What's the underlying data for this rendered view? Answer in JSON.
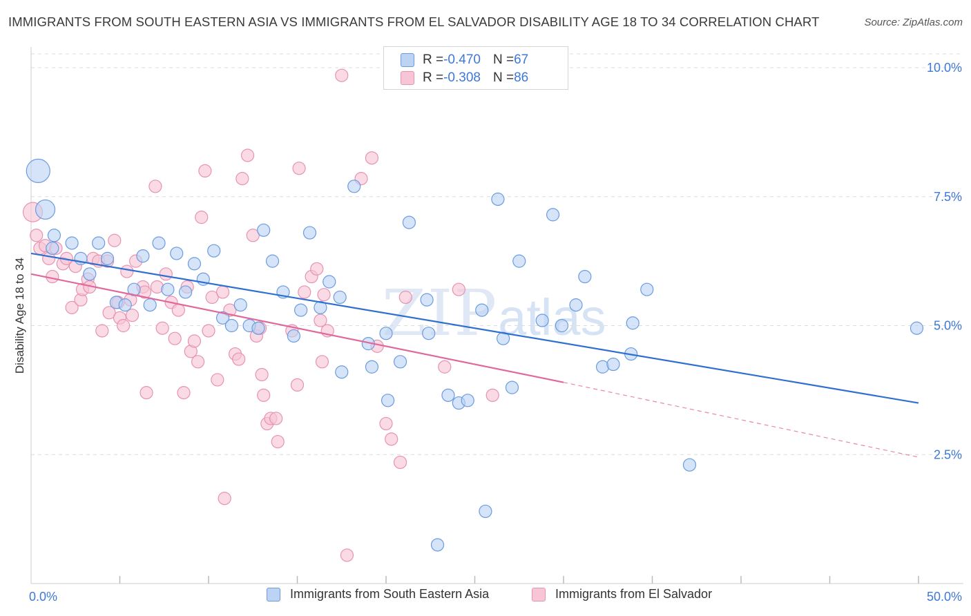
{
  "header": {
    "title": "IMMIGRANTS FROM SOUTH EASTERN ASIA VS IMMIGRANTS FROM EL SALVADOR DISABILITY AGE 18 TO 34 CORRELATION CHART",
    "source": "Source: ZipAtlas.com"
  },
  "watermark": {
    "main": "ZIP",
    "sub": "atlas"
  },
  "legend": {
    "series1": {
      "r_label": "R = ",
      "r_value": "-0.470",
      "n_label": "N = ",
      "n_value": "67"
    },
    "series2": {
      "r_label": "R = ",
      "r_value": "-0.308",
      "n_label": "N = ",
      "n_value": "86"
    }
  },
  "colors": {
    "blue_fill": "#bcd3f3",
    "blue_stroke": "#6a9be0",
    "blue_line": "#2e6fd0",
    "pink_fill": "#f7c5d5",
    "pink_stroke": "#e892b0",
    "pink_line": "#e0689a",
    "tick_label": "#3d78d8",
    "grid": "#dcdcdc"
  },
  "chart_data": {
    "type": "scatter",
    "title": "IMMIGRANTS FROM SOUTH EASTERN ASIA VS IMMIGRANTS FROM EL SALVADOR DISABILITY AGE 18 TO 34 CORRELATION CHART",
    "xlabel": "",
    "ylabel": "Disability Age 18 to 34",
    "xlim": [
      0,
      50
    ],
    "ylim": [
      0,
      10.25
    ],
    "x_tick_labels": [
      "0.0%",
      "50.0%"
    ],
    "y_ticks": [
      2.5,
      5.0,
      7.5,
      10.0
    ],
    "y_tick_labels": [
      "2.5%",
      "5.0%",
      "7.5%",
      "10.0%"
    ],
    "grid": true,
    "legend_position": "bottom",
    "series": [
      {
        "name": "Immigrants from South Eastern Asia",
        "color": "blue",
        "r": -0.47,
        "n": 67,
        "trend": {
          "x_start": 0,
          "y_start": 6.4,
          "x_end": 50,
          "y_end": 3.5
        },
        "points": [
          {
            "x": 0.4,
            "y": 8.0,
            "s": 3
          },
          {
            "x": 0.8,
            "y": 7.25,
            "s": 2
          },
          {
            "x": 1.3,
            "y": 6.75,
            "s": 1
          },
          {
            "x": 1.2,
            "y": 6.5,
            "s": 1
          },
          {
            "x": 2.3,
            "y": 6.6,
            "s": 1
          },
          {
            "x": 2.8,
            "y": 6.3,
            "s": 1
          },
          {
            "x": 3.3,
            "y": 6.0,
            "s": 1
          },
          {
            "x": 3.8,
            "y": 6.6,
            "s": 1
          },
          {
            "x": 4.3,
            "y": 6.3,
            "s": 1
          },
          {
            "x": 4.8,
            "y": 5.45,
            "s": 1
          },
          {
            "x": 5.3,
            "y": 5.4,
            "s": 1
          },
          {
            "x": 5.8,
            "y": 5.7,
            "s": 1
          },
          {
            "x": 6.3,
            "y": 6.35,
            "s": 1
          },
          {
            "x": 6.7,
            "y": 5.4,
            "s": 1
          },
          {
            "x": 7.2,
            "y": 6.6,
            "s": 1
          },
          {
            "x": 7.7,
            "y": 5.7,
            "s": 1
          },
          {
            "x": 8.2,
            "y": 6.4,
            "s": 1
          },
          {
            "x": 8.7,
            "y": 5.65,
            "s": 1
          },
          {
            "x": 9.2,
            "y": 6.2,
            "s": 1
          },
          {
            "x": 9.7,
            "y": 5.9,
            "s": 1
          },
          {
            "x": 10.3,
            "y": 6.45,
            "s": 1
          },
          {
            "x": 10.8,
            "y": 5.15,
            "s": 1
          },
          {
            "x": 11.3,
            "y": 5.0,
            "s": 1
          },
          {
            "x": 11.8,
            "y": 5.4,
            "s": 1
          },
          {
            "x": 12.3,
            "y": 5.0,
            "s": 1
          },
          {
            "x": 12.8,
            "y": 4.95,
            "s": 1
          },
          {
            "x": 13.1,
            "y": 6.85,
            "s": 1
          },
          {
            "x": 13.6,
            "y": 6.25,
            "s": 1
          },
          {
            "x": 14.2,
            "y": 5.65,
            "s": 1
          },
          {
            "x": 14.8,
            "y": 4.8,
            "s": 1
          },
          {
            "x": 15.2,
            "y": 5.3,
            "s": 1
          },
          {
            "x": 15.7,
            "y": 6.8,
            "s": 1
          },
          {
            "x": 16.3,
            "y": 5.35,
            "s": 1
          },
          {
            "x": 16.8,
            "y": 5.85,
            "s": 1
          },
          {
            "x": 17.4,
            "y": 5.55,
            "s": 1
          },
          {
            "x": 17.5,
            "y": 4.1,
            "s": 1
          },
          {
            "x": 18.2,
            "y": 7.7,
            "s": 1
          },
          {
            "x": 19.0,
            "y": 4.65,
            "s": 1
          },
          {
            "x": 19.2,
            "y": 4.2,
            "s": 1
          },
          {
            "x": 20.0,
            "y": 4.85,
            "s": 1
          },
          {
            "x": 20.1,
            "y": 3.55,
            "s": 1
          },
          {
            "x": 20.8,
            "y": 4.3,
            "s": 1
          },
          {
            "x": 21.3,
            "y": 7.0,
            "s": 1
          },
          {
            "x": 22.3,
            "y": 5.5,
            "s": 1
          },
          {
            "x": 22.4,
            "y": 4.85,
            "s": 1
          },
          {
            "x": 22.9,
            "y": 0.75,
            "s": 1
          },
          {
            "x": 23.5,
            "y": 3.65,
            "s": 1
          },
          {
            "x": 24.1,
            "y": 3.5,
            "s": 1
          },
          {
            "x": 24.6,
            "y": 3.55,
            "s": 1
          },
          {
            "x": 25.4,
            "y": 5.3,
            "s": 1
          },
          {
            "x": 25.6,
            "y": 1.4,
            "s": 1
          },
          {
            "x": 26.3,
            "y": 7.45,
            "s": 1
          },
          {
            "x": 26.6,
            "y": 4.75,
            "s": 1
          },
          {
            "x": 27.1,
            "y": 3.8,
            "s": 1
          },
          {
            "x": 27.5,
            "y": 6.25,
            "s": 1
          },
          {
            "x": 28.8,
            "y": 5.1,
            "s": 1
          },
          {
            "x": 29.4,
            "y": 7.15,
            "s": 1
          },
          {
            "x": 29.9,
            "y": 5.0,
            "s": 1
          },
          {
            "x": 30.7,
            "y": 5.4,
            "s": 1
          },
          {
            "x": 31.2,
            "y": 5.95,
            "s": 1
          },
          {
            "x": 32.2,
            "y": 4.2,
            "s": 1
          },
          {
            "x": 32.8,
            "y": 4.25,
            "s": 1
          },
          {
            "x": 33.8,
            "y": 4.45,
            "s": 1
          },
          {
            "x": 33.9,
            "y": 5.05,
            "s": 1
          },
          {
            "x": 34.7,
            "y": 5.7,
            "s": 1
          },
          {
            "x": 37.1,
            "y": 2.3,
            "s": 1
          },
          {
            "x": 49.9,
            "y": 4.95,
            "s": 1
          }
        ]
      },
      {
        "name": "Immigrants from El Salvador",
        "color": "pink",
        "r": -0.308,
        "n": 86,
        "trend": {
          "x_start": 0,
          "y_start": 6.0,
          "x_end": 30.0,
          "y_end": 3.9
        },
        "trend_dashed_to": {
          "x": 50,
          "y": 2.45
        },
        "points": [
          {
            "x": 0.1,
            "y": 7.2,
            "s": 2
          },
          {
            "x": 0.3,
            "y": 6.75,
            "s": 1
          },
          {
            "x": 0.5,
            "y": 6.5,
            "s": 1
          },
          {
            "x": 0.8,
            "y": 6.55,
            "s": 1
          },
          {
            "x": 1.0,
            "y": 6.3,
            "s": 1
          },
          {
            "x": 1.2,
            "y": 5.95,
            "s": 1
          },
          {
            "x": 1.4,
            "y": 6.5,
            "s": 1
          },
          {
            "x": 1.8,
            "y": 6.2,
            "s": 1
          },
          {
            "x": 2.0,
            "y": 6.3,
            "s": 1
          },
          {
            "x": 2.3,
            "y": 5.35,
            "s": 1
          },
          {
            "x": 2.5,
            "y": 6.15,
            "s": 1
          },
          {
            "x": 2.8,
            "y": 5.5,
            "s": 1
          },
          {
            "x": 2.9,
            "y": 5.7,
            "s": 1
          },
          {
            "x": 3.2,
            "y": 5.9,
            "s": 1
          },
          {
            "x": 3.3,
            "y": 5.75,
            "s": 1
          },
          {
            "x": 3.5,
            "y": 6.3,
            "s": 1
          },
          {
            "x": 3.8,
            "y": 6.25,
            "s": 1
          },
          {
            "x": 4.0,
            "y": 4.9,
            "s": 1
          },
          {
            "x": 4.3,
            "y": 6.25,
            "s": 1
          },
          {
            "x": 4.4,
            "y": 5.25,
            "s": 1
          },
          {
            "x": 4.7,
            "y": 6.65,
            "s": 1
          },
          {
            "x": 4.9,
            "y": 5.45,
            "s": 1
          },
          {
            "x": 5.0,
            "y": 5.15,
            "s": 1
          },
          {
            "x": 5.2,
            "y": 5.0,
            "s": 1
          },
          {
            "x": 5.4,
            "y": 6.05,
            "s": 1
          },
          {
            "x": 5.6,
            "y": 5.5,
            "s": 1
          },
          {
            "x": 5.7,
            "y": 5.2,
            "s": 1
          },
          {
            "x": 5.9,
            "y": 6.25,
            "s": 1
          },
          {
            "x": 6.3,
            "y": 5.75,
            "s": 1
          },
          {
            "x": 6.4,
            "y": 5.65,
            "s": 1
          },
          {
            "x": 6.5,
            "y": 3.7,
            "s": 1
          },
          {
            "x": 7.0,
            "y": 7.7,
            "s": 1
          },
          {
            "x": 7.1,
            "y": 5.75,
            "s": 1
          },
          {
            "x": 7.4,
            "y": 4.95,
            "s": 1
          },
          {
            "x": 7.6,
            "y": 6.0,
            "s": 1
          },
          {
            "x": 7.9,
            "y": 5.45,
            "s": 1
          },
          {
            "x": 8.1,
            "y": 4.75,
            "s": 1
          },
          {
            "x": 8.3,
            "y": 5.3,
            "s": 1
          },
          {
            "x": 8.6,
            "y": 3.7,
            "s": 1
          },
          {
            "x": 8.8,
            "y": 5.75,
            "s": 1
          },
          {
            "x": 9.0,
            "y": 4.5,
            "s": 1
          },
          {
            "x": 9.2,
            "y": 4.7,
            "s": 1
          },
          {
            "x": 9.4,
            "y": 4.3,
            "s": 1
          },
          {
            "x": 9.6,
            "y": 7.1,
            "s": 1
          },
          {
            "x": 9.8,
            "y": 8.0,
            "s": 1
          },
          {
            "x": 10.0,
            "y": 4.9,
            "s": 1
          },
          {
            "x": 10.2,
            "y": 5.55,
            "s": 1
          },
          {
            "x": 10.5,
            "y": 3.95,
            "s": 1
          },
          {
            "x": 10.8,
            "y": 5.65,
            "s": 1
          },
          {
            "x": 10.9,
            "y": 1.65,
            "s": 1
          },
          {
            "x": 11.2,
            "y": 5.3,
            "s": 1
          },
          {
            "x": 11.5,
            "y": 4.45,
            "s": 1
          },
          {
            "x": 11.7,
            "y": 4.35,
            "s": 1
          },
          {
            "x": 11.9,
            "y": 7.85,
            "s": 1
          },
          {
            "x": 12.2,
            "y": 8.3,
            "s": 1
          },
          {
            "x": 12.5,
            "y": 6.75,
            "s": 1
          },
          {
            "x": 12.7,
            "y": 4.8,
            "s": 1
          },
          {
            "x": 12.9,
            "y": 4.95,
            "s": 1
          },
          {
            "x": 13.0,
            "y": 4.05,
            "s": 1
          },
          {
            "x": 13.1,
            "y": 3.65,
            "s": 1
          },
          {
            "x": 13.3,
            "y": 3.1,
            "s": 1
          },
          {
            "x": 13.5,
            "y": 3.2,
            "s": 1
          },
          {
            "x": 13.8,
            "y": 3.2,
            "s": 1
          },
          {
            "x": 13.9,
            "y": 2.75,
            "s": 1
          },
          {
            "x": 14.7,
            "y": 4.9,
            "s": 1
          },
          {
            "x": 15.0,
            "y": 3.85,
            "s": 1
          },
          {
            "x": 15.1,
            "y": 8.05,
            "s": 1
          },
          {
            "x": 15.4,
            "y": 5.65,
            "s": 1
          },
          {
            "x": 15.8,
            "y": 5.95,
            "s": 1
          },
          {
            "x": 16.1,
            "y": 6.1,
            "s": 1
          },
          {
            "x": 16.3,
            "y": 5.1,
            "s": 1
          },
          {
            "x": 16.4,
            "y": 4.3,
            "s": 1
          },
          {
            "x": 16.5,
            "y": 5.6,
            "s": 1
          },
          {
            "x": 16.7,
            "y": 4.9,
            "s": 1
          },
          {
            "x": 17.5,
            "y": 9.85,
            "s": 1
          },
          {
            "x": 17.8,
            "y": 0.55,
            "s": 1
          },
          {
            "x": 18.6,
            "y": 7.85,
            "s": 1
          },
          {
            "x": 19.2,
            "y": 8.25,
            "s": 1
          },
          {
            "x": 19.5,
            "y": 4.6,
            "s": 1
          },
          {
            "x": 20.0,
            "y": 3.1,
            "s": 1
          },
          {
            "x": 20.3,
            "y": 2.8,
            "s": 1
          },
          {
            "x": 20.8,
            "y": 2.35,
            "s": 1
          },
          {
            "x": 21.1,
            "y": 5.55,
            "s": 1
          },
          {
            "x": 23.3,
            "y": 4.2,
            "s": 1
          },
          {
            "x": 24.1,
            "y": 5.7,
            "s": 1
          },
          {
            "x": 26.0,
            "y": 3.65,
            "s": 1
          }
        ]
      }
    ]
  }
}
